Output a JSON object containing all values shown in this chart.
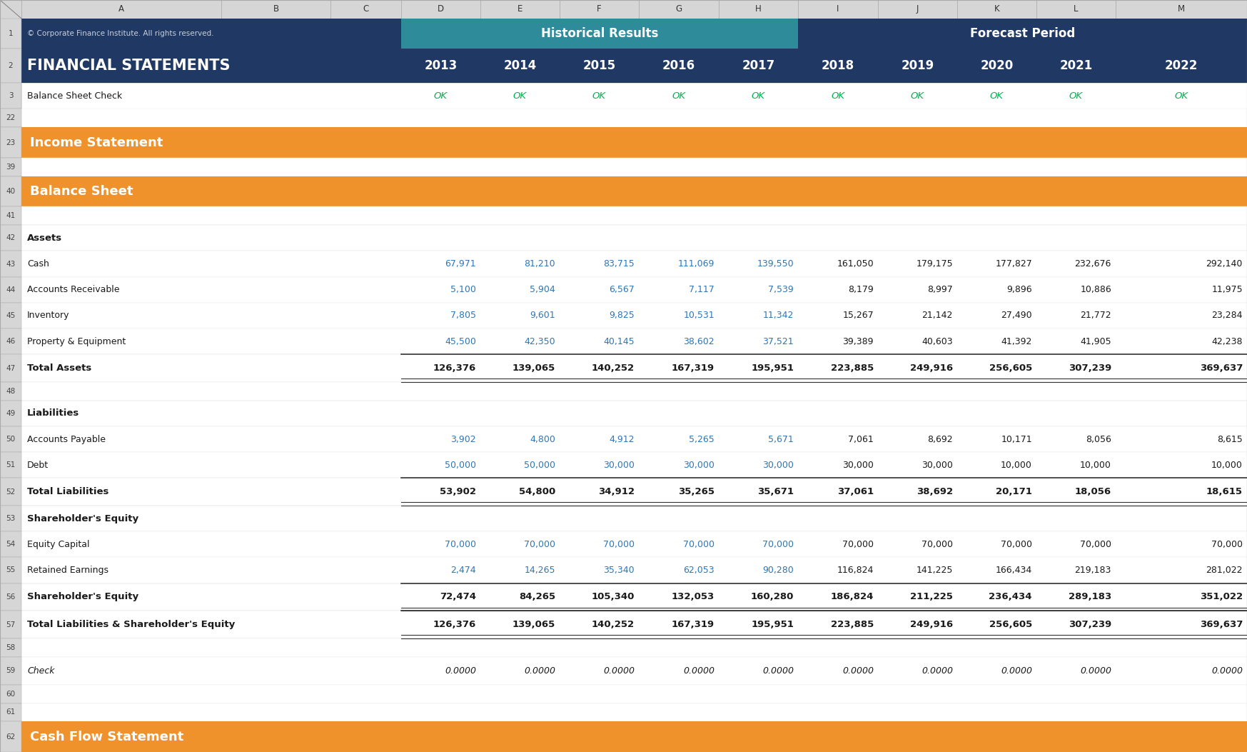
{
  "dark_blue": "#1f3864",
  "teal": "#2e8b9a",
  "orange": "#f0922b",
  "white": "#ffffff",
  "blue_text": "#2e75b6",
  "green_text": "#00b050",
  "dark_text": "#1a1a1a",
  "col_header_bg": "#d6d6d6",
  "row_num_bg": "#d6d6d6",
  "col_letters": [
    "A",
    "B",
    "C",
    "D",
    "E",
    "F",
    "G",
    "H",
    "I",
    "J",
    "K",
    "L",
    "M"
  ],
  "years_hist": [
    "2013",
    "2014",
    "2015",
    "2016",
    "2017"
  ],
  "years_fore": [
    "2018",
    "2019",
    "2020",
    "2021",
    "2022"
  ],
  "rows": [
    {
      "row": "1",
      "type": "header1"
    },
    {
      "row": "2",
      "type": "header2"
    },
    {
      "row": "3",
      "type": "check"
    },
    {
      "row": "22",
      "type": "blank"
    },
    {
      "row": "23",
      "type": "section",
      "label": "Income Statement"
    },
    {
      "row": "39",
      "type": "blank"
    },
    {
      "row": "40",
      "type": "section",
      "label": "Balance Sheet"
    },
    {
      "row": "41",
      "type": "blank"
    },
    {
      "row": "42",
      "type": "subheader",
      "label": "Assets"
    },
    {
      "row": "43",
      "type": "data",
      "label": "Cash",
      "hist": [
        "67,971",
        "81,210",
        "83,715",
        "111,069",
        "139,550"
      ],
      "fore": [
        "161,050",
        "179,175",
        "177,827",
        "232,676",
        "292,140"
      ]
    },
    {
      "row": "44",
      "type": "data",
      "label": "Accounts Receivable",
      "hist": [
        "5,100",
        "5,904",
        "6,567",
        "7,117",
        "7,539"
      ],
      "fore": [
        "8,179",
        "8,997",
        "9,896",
        "10,886",
        "11,975"
      ]
    },
    {
      "row": "45",
      "type": "data",
      "label": "Inventory",
      "hist": [
        "7,805",
        "9,601",
        "9,825",
        "10,531",
        "11,342"
      ],
      "fore": [
        "15,267",
        "21,142",
        "27,490",
        "21,772",
        "23,284"
      ]
    },
    {
      "row": "46",
      "type": "data",
      "label": "Property & Equipment",
      "hist": [
        "45,500",
        "42,350",
        "40,145",
        "38,602",
        "37,521"
      ],
      "fore": [
        "39,389",
        "40,603",
        "41,392",
        "41,905",
        "42,238"
      ]
    },
    {
      "row": "47",
      "type": "total",
      "label": "Total Assets",
      "hist": [
        "126,376",
        "139,065",
        "140,252",
        "167,319",
        "195,951"
      ],
      "fore": [
        "223,885",
        "249,916",
        "256,605",
        "307,239",
        "369,637"
      ]
    },
    {
      "row": "48",
      "type": "blank"
    },
    {
      "row": "49",
      "type": "subheader",
      "label": "Liabilities"
    },
    {
      "row": "50",
      "type": "data",
      "label": "Accounts Payable",
      "hist": [
        "3,902",
        "4,800",
        "4,912",
        "5,265",
        "5,671"
      ],
      "fore": [
        "7,061",
        "8,692",
        "10,171",
        "8,056",
        "8,615"
      ]
    },
    {
      "row": "51",
      "type": "data",
      "label": "Debt",
      "hist": [
        "50,000",
        "50,000",
        "30,000",
        "30,000",
        "30,000"
      ],
      "fore": [
        "30,000",
        "30,000",
        "10,000",
        "10,000",
        "10,000"
      ]
    },
    {
      "row": "52",
      "type": "total",
      "label": "Total Liabilities",
      "hist": [
        "53,902",
        "54,800",
        "34,912",
        "35,265",
        "35,671"
      ],
      "fore": [
        "37,061",
        "38,692",
        "20,171",
        "18,056",
        "18,615"
      ]
    },
    {
      "row": "53",
      "type": "subheader",
      "label": "Shareholder's Equity"
    },
    {
      "row": "54",
      "type": "data",
      "label": "Equity Capital",
      "hist": [
        "70,000",
        "70,000",
        "70,000",
        "70,000",
        "70,000"
      ],
      "fore": [
        "70,000",
        "70,000",
        "70,000",
        "70,000",
        "70,000"
      ]
    },
    {
      "row": "55",
      "type": "data",
      "label": "Retained Earnings",
      "hist": [
        "2,474",
        "14,265",
        "35,340",
        "62,053",
        "90,280"
      ],
      "fore": [
        "116,824",
        "141,225",
        "166,434",
        "219,183",
        "281,022"
      ]
    },
    {
      "row": "56",
      "type": "total",
      "label": "Shareholder's Equity",
      "hist": [
        "72,474",
        "84,265",
        "105,340",
        "132,053",
        "160,280"
      ],
      "fore": [
        "186,824",
        "211,225",
        "236,434",
        "289,183",
        "351,022"
      ]
    },
    {
      "row": "57",
      "type": "total",
      "label": "Total Liabilities & Shareholder's Equity",
      "hist": [
        "126,376",
        "139,065",
        "140,252",
        "167,319",
        "195,951"
      ],
      "fore": [
        "223,885",
        "249,916",
        "256,605",
        "307,239",
        "369,637"
      ]
    },
    {
      "row": "58",
      "type": "blank"
    },
    {
      "row": "59",
      "type": "check_row",
      "label": "Check",
      "hist": [
        "0.0000",
        "0.0000",
        "0.0000",
        "0.0000",
        "0.0000"
      ],
      "fore": [
        "0.0000",
        "0.0000",
        "0.0000",
        "0.0000",
        "0.0000"
      ]
    },
    {
      "row": "60",
      "type": "blank"
    },
    {
      "row": "61",
      "type": "blank"
    },
    {
      "row": "62",
      "type": "section",
      "label": "Cash Flow Statement"
    }
  ]
}
